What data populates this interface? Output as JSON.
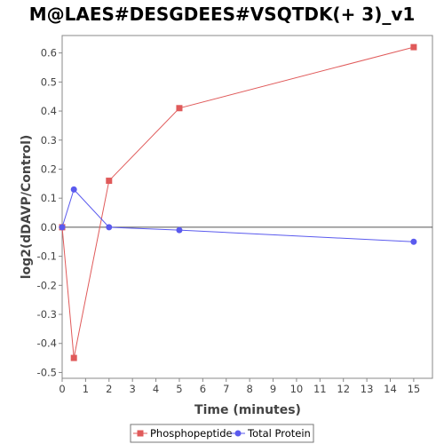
{
  "chart_data": {
    "type": "line",
    "title": "M@LAES#DESGDEES#VSQTDK(+ 3)_v1",
    "xlabel": "Time (minutes)",
    "ylabel": "log2(dDAVP/Control)",
    "xlim": [
      0,
      15.8
    ],
    "ylim": [
      -0.52,
      0.66
    ],
    "xticks": [
      0,
      1,
      2,
      3,
      4,
      5,
      6,
      7,
      8,
      9,
      10,
      11,
      12,
      13,
      14,
      15
    ],
    "yticks": [
      -0.5,
      -0.4,
      -0.3,
      -0.2,
      -0.1,
      0.0,
      0.1,
      0.2,
      0.3,
      0.4,
      0.5,
      0.6
    ],
    "grid": false,
    "zero_line": true,
    "legend_position": "bottom",
    "series": [
      {
        "name": "Phosphopeptide",
        "color": "#e05a5a",
        "marker": "square",
        "x": [
          0,
          0.5,
          2,
          5,
          15
        ],
        "y": [
          0.0,
          -0.45,
          0.16,
          0.41,
          0.62
        ]
      },
      {
        "name": "Total Protein",
        "color": "#5a5aee",
        "marker": "circle",
        "x": [
          0,
          0.5,
          2,
          5,
          15
        ],
        "y": [
          0.0,
          0.13,
          0.0,
          -0.01,
          -0.05
        ]
      }
    ]
  }
}
